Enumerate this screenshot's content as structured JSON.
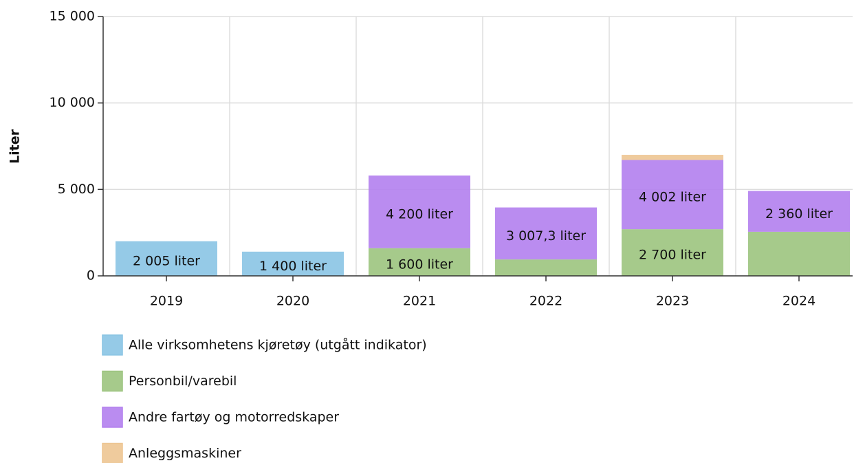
{
  "chart_data": {
    "type": "stacked_bar",
    "y_label": "Liter",
    "categories": [
      "2019",
      "2020",
      "2021",
      "2022",
      "2023",
      "2024"
    ],
    "series": [
      {
        "name": "Alle virksomhetens kjøretøy (utgått indikator)",
        "color": "#89c4e4",
        "values": [
          2005,
          1400,
          null,
          null,
          null,
          null
        ],
        "value_labels": [
          "2 005 liter",
          "1 400 liter",
          null,
          null,
          null,
          null
        ]
      },
      {
        "name": "Personbil/varebil",
        "color": "#9cc47e",
        "values": [
          null,
          null,
          1600,
          950,
          2700,
          2550
        ],
        "value_labels": [
          null,
          null,
          "1 600 liter",
          null,
          "2 700 liter",
          null
        ]
      },
      {
        "name": "Andre fartøy og motorredskaper",
        "color": "#b27fee",
        "values": [
          null,
          null,
          4200,
          3007.3,
          4002,
          2360
        ],
        "value_labels": [
          null,
          null,
          "4 200 liter",
          "3 007,3 liter",
          "4 002 liter",
          "2 360 liter"
        ]
      },
      {
        "name": "Anleggsmaskiner",
        "color": "#edc592",
        "values": [
          null,
          null,
          null,
          null,
          300,
          null
        ]
      }
    ],
    "ylim": [
      0,
      15000
    ],
    "yticks": [
      0,
      {
        "value": 5000,
        "label": "5 000"
      },
      {
        "value": 10000,
        "label": "10 000"
      },
      {
        "value": 15000,
        "label": "15 000"
      }
    ],
    "grid": true,
    "legend": "bottom"
  }
}
